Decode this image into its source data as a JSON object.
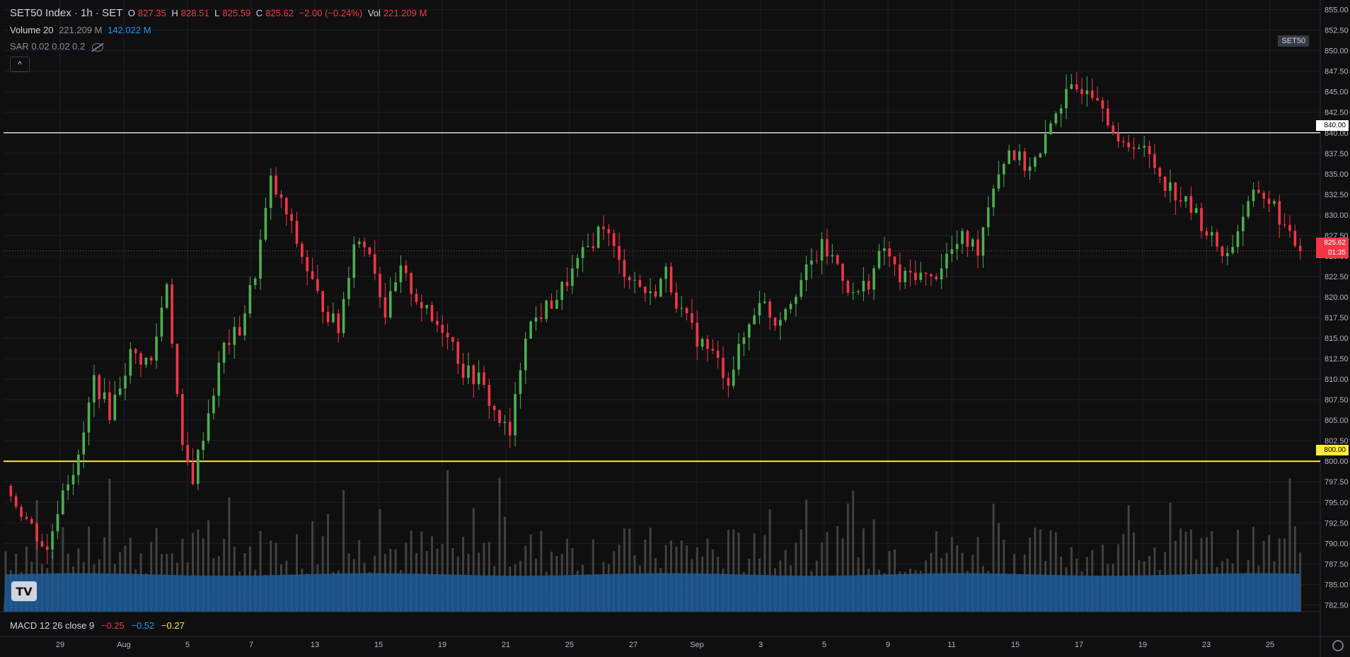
{
  "header": {
    "symbol": "SET50 Index · 1h · SET",
    "o_label": "O",
    "o_value": "827.35",
    "h_label": "H",
    "h_value": "828.51",
    "l_label": "L",
    "l_value": "825.59",
    "c_label": "C",
    "c_value": "825.62",
    "change": "−2.00 (−0.24%)",
    "vol_label": "Vol",
    "vol_value": "221.209 M"
  },
  "volume_legend": {
    "label": "Volume 20",
    "value1": "221.209 M",
    "value2": "142.022 M"
  },
  "sar_legend": {
    "label": "SAR 0.02 0.02 0.2"
  },
  "collapse_button": "^",
  "symbol_tag": "SET50",
  "price_tags": {
    "line_white": "840.00",
    "line_yellow": "800.00",
    "current_price": "825.62",
    "countdown": "01:35"
  },
  "macd_legend": {
    "label": "MACD 12 26 close 9",
    "v1": "−0.25",
    "v2": "−0.52",
    "v3": "−0.27"
  },
  "colors": {
    "up": "#4caf50",
    "down": "#f23645",
    "background": "#0f0f10",
    "grid": "#1e1f24",
    "yellow_line": "#ffeb3b",
    "white_line": "#ffffff",
    "volume_ma": "#1f5d9a",
    "volume_bar": "#4a4a4a"
  },
  "logo": "TV",
  "icons": [
    "eye-hidden-icon",
    "chevron-up-icon",
    "settings-icon",
    "tradingview-logo-icon"
  ],
  "chart_data": {
    "type": "candlestick",
    "y_axis_ticks": [
      "855.00",
      "852.50",
      "850.00",
      "847.50",
      "845.00",
      "842.50",
      "840.00",
      "837.50",
      "835.00",
      "832.50",
      "830.00",
      "827.50",
      "825.00",
      "822.50",
      "820.00",
      "817.50",
      "815.00",
      "812.50",
      "810.00",
      "807.50",
      "805.00",
      "802.50",
      "800.00",
      "797.50",
      "795.00",
      "792.50",
      "790.00",
      "787.50",
      "785.00",
      "782.50"
    ],
    "ylim": [
      781.5,
      856.0
    ],
    "x_axis_ticks": [
      "29",
      "Aug",
      "5",
      "7",
      "13",
      "15",
      "19",
      "21",
      "25",
      "27",
      "Sep",
      "3",
      "5",
      "9",
      "11",
      "15",
      "17",
      "19",
      "23",
      "25"
    ],
    "horizontal_lines": [
      {
        "value": 840.0,
        "color": "#ffffff"
      },
      {
        "value": 800.0,
        "color": "#ffeb3b"
      }
    ],
    "current_price": 825.62,
    "price_path": [
      [
        0,
        797
      ],
      [
        4,
        793
      ],
      [
        8,
        789
      ],
      [
        11,
        797
      ],
      [
        14,
        800
      ],
      [
        17,
        810
      ],
      [
        20,
        806
      ],
      [
        24,
        813
      ],
      [
        28,
        812
      ],
      [
        31,
        822
      ],
      [
        34,
        801
      ],
      [
        36,
        798
      ],
      [
        39,
        806
      ],
      [
        42,
        814
      ],
      [
        45,
        816
      ],
      [
        48,
        823
      ],
      [
        51,
        834
      ],
      [
        54,
        830
      ],
      [
        57,
        825
      ],
      [
        60,
        820
      ],
      [
        64,
        816
      ],
      [
        67,
        827
      ],
      [
        70,
        826
      ],
      [
        73,
        818
      ],
      [
        76,
        823
      ],
      [
        79,
        820
      ],
      [
        82,
        817
      ],
      [
        85,
        816
      ],
      [
        88,
        811
      ],
      [
        91,
        810
      ],
      [
        94,
        806
      ],
      [
        97,
        803
      ],
      [
        100,
        816
      ],
      [
        103,
        818
      ],
      [
        106,
        820
      ],
      [
        109,
        823
      ],
      [
        112,
        826
      ],
      [
        115,
        829
      ],
      [
        118,
        824
      ],
      [
        121,
        822
      ],
      [
        124,
        820
      ],
      [
        127,
        823
      ],
      [
        130,
        818
      ],
      [
        133,
        815
      ],
      [
        136,
        813
      ],
      [
        139,
        810
      ],
      [
        142,
        815
      ],
      [
        145,
        820
      ],
      [
        148,
        817
      ],
      [
        151,
        820
      ],
      [
        154,
        823
      ],
      [
        157,
        826
      ],
      [
        160,
        824
      ],
      [
        163,
        820
      ],
      [
        166,
        822
      ],
      [
        169,
        826
      ],
      [
        172,
        822
      ],
      [
        175,
        823
      ],
      [
        178,
        822
      ],
      [
        181,
        825
      ],
      [
        184,
        827
      ],
      [
        187,
        826
      ],
      [
        190,
        834
      ],
      [
        193,
        838
      ],
      [
        196,
        836
      ],
      [
        199,
        837
      ],
      [
        202,
        843
      ],
      [
        205,
        845
      ],
      [
        208,
        846
      ],
      [
        211,
        844
      ],
      [
        214,
        838
      ],
      [
        217,
        839
      ],
      [
        220,
        837
      ],
      [
        223,
        834
      ],
      [
        226,
        832
      ],
      [
        229,
        830
      ],
      [
        232,
        827
      ],
      [
        235,
        825
      ],
      [
        238,
        830
      ],
      [
        241,
        833
      ],
      [
        244,
        831
      ],
      [
        247,
        827
      ],
      [
        250,
        825.62
      ]
    ],
    "volume_ma_level": 0.55
  }
}
